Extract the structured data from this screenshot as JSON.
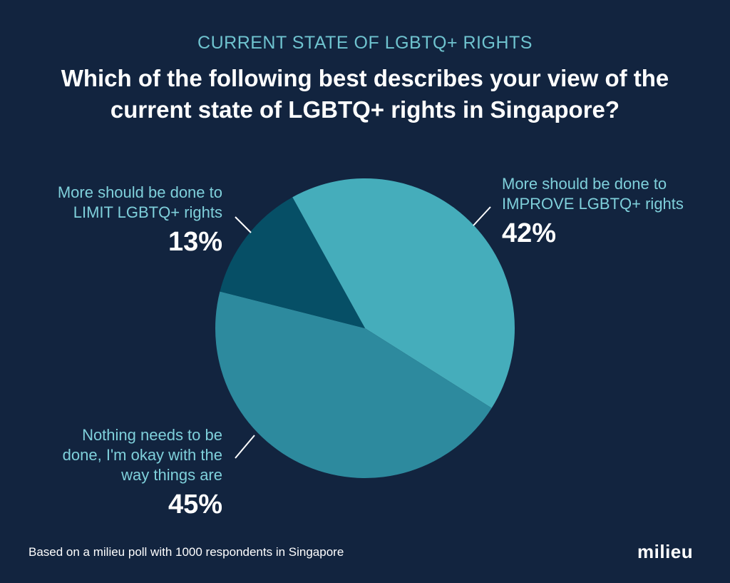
{
  "header": {
    "subtitle": "CURRENT STATE OF LGBTQ+ RIGHTS",
    "title": "Which of the following best describes your view of the current state of LGBTQ+ rights in Singapore?"
  },
  "chart_data": {
    "type": "pie",
    "slices": [
      {
        "label_lines": [
          "More should be done to",
          "IMPROVE LGBTQ+ rights"
        ],
        "value": 42,
        "value_label": "42%",
        "color": "#45adbb"
      },
      {
        "label_lines": [
          "Nothing needs to be",
          "done, I'm okay with the",
          "way things are"
        ],
        "value": 45,
        "value_label": "45%",
        "color": "#2d8a9e"
      },
      {
        "label_lines": [
          "More should be done to",
          "LIMIT LGBTQ+ rights"
        ],
        "value": 13,
        "value_label": "13%",
        "color": "#064f66"
      }
    ]
  },
  "footer": {
    "note": "Based on a milieu poll with 1000 respondents in Singapore",
    "logo": "milieu"
  },
  "colors": {
    "background": "#12243f",
    "accent_text": "#7fd0db"
  }
}
